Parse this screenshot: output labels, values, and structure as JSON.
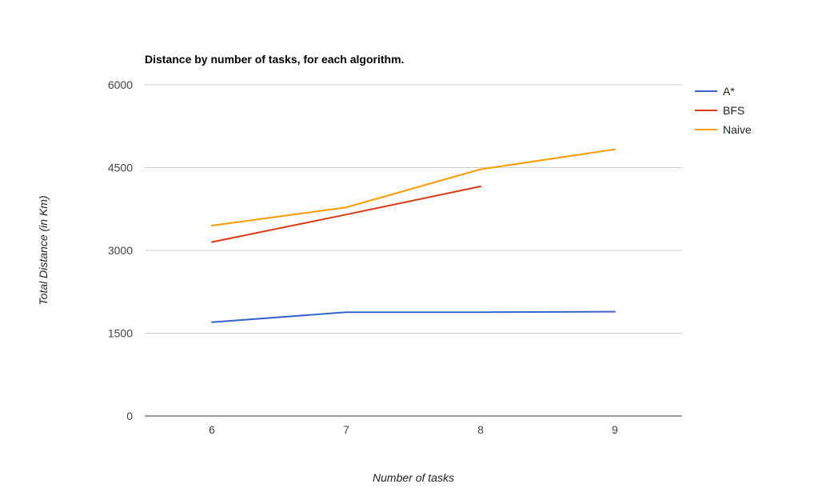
{
  "chart_data": {
    "type": "line",
    "title": "Distance by number of tasks, for each algorithm.",
    "xlabel": "Number of tasks",
    "ylabel": "Total Distance (in Km)",
    "categories": [
      "6",
      "7",
      "8",
      "9"
    ],
    "yticks": [
      "0",
      "1500",
      "3000",
      "4500",
      "6000"
    ],
    "ylim": [
      0,
      6000
    ],
    "grid": true,
    "legend_position": "right",
    "series": [
      {
        "name": "A*",
        "color": "#3366cc",
        "values": [
          1700,
          1880,
          1880,
          1890
        ]
      },
      {
        "name": "BFS",
        "color": "#dc3912",
        "values": [
          3150,
          3650,
          4160,
          null
        ]
      },
      {
        "name": "Naive",
        "color": "#ff9900",
        "values": [
          3450,
          3780,
          4470,
          4830
        ]
      }
    ]
  }
}
